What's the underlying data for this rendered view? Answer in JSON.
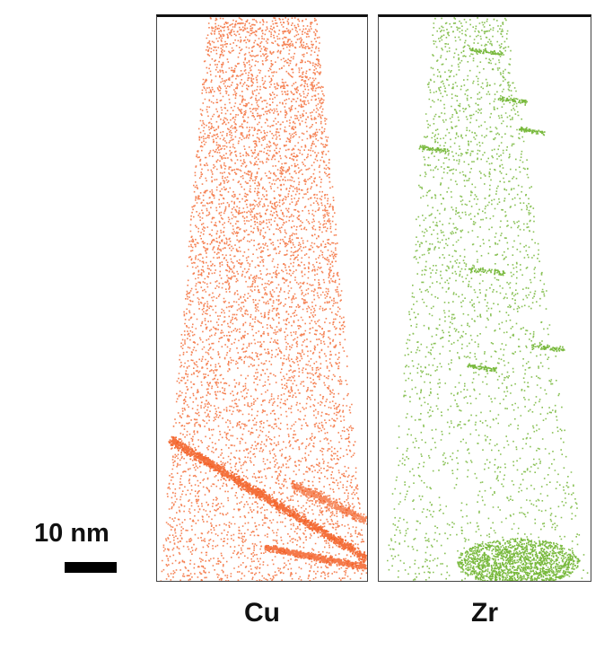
{
  "figure": {
    "panels": [
      {
        "element": "Cu",
        "color": "#f2581b"
      },
      {
        "element": "Zr",
        "color": "#6cb22a"
      }
    ],
    "scale_bar": {
      "label": "10 nm"
    }
  }
}
